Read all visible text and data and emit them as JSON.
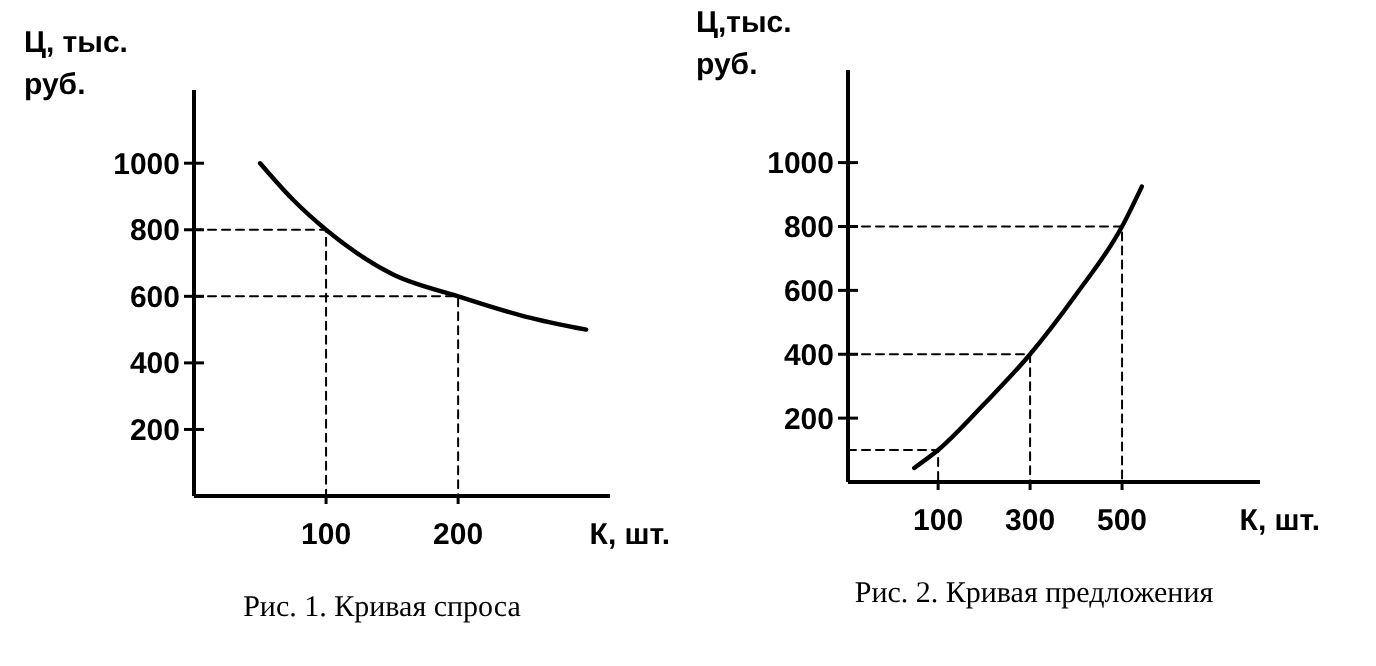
{
  "chart_data": [
    {
      "type": "line",
      "title": "Рис. 1. Кривая спроса",
      "xlabel": "К, шт.",
      "ylabel": "Ц, тыс. руб.",
      "xlim": [
        0,
        315
      ],
      "ylim": [
        0,
        1220
      ],
      "xticks": [
        100,
        200
      ],
      "yticks": [
        200,
        400,
        600,
        800,
        1000
      ],
      "grid": false,
      "marker": "none",
      "series": [
        {
          "color": "#000000",
          "x": [
            50,
            75,
            100,
            150,
            200,
            250,
            297
          ],
          "values": [
            1000,
            890,
            800,
            667,
            600,
            540,
            500
          ]
        },
        {
          "color": "#000000",
          "line_style": "dashed",
          "x": [
            0,
            100,
            100
          ],
          "values": [
            800,
            800,
            0
          ]
        },
        {
          "color": "#000000",
          "line_style": "dashed",
          "x": [
            0,
            200,
            200
          ],
          "values": [
            600,
            600,
            0
          ]
        }
      ]
    },
    {
      "type": "line",
      "title": "Рис. 2. Кривая предложения",
      "xlabel": "К, шт.",
      "ylabel": "Ц,тыс. руб.",
      "xlim": [
        -96,
        800
      ],
      "ylim": [
        0,
        1290
      ],
      "xticks": [
        100,
        300,
        500
      ],
      "yticks": [
        200,
        400,
        600,
        800,
        1000
      ],
      "grid": false,
      "marker": "none",
      "series": [
        {
          "color": "#000000",
          "x": [
            48,
            100,
            200,
            300,
            400,
            500,
            543
          ],
          "values": [
            44,
            100,
            244,
            400,
            587,
            800,
            925
          ]
        },
        {
          "color": "#000000",
          "line_style": "dashed",
          "x": [
            -96,
            100,
            100
          ],
          "values": [
            100,
            100,
            0
          ]
        },
        {
          "color": "#000000",
          "line_style": "dashed",
          "x": [
            -96,
            300,
            300
          ],
          "values": [
            400,
            400,
            0
          ]
        },
        {
          "color": "#000000",
          "line_style": "dashed",
          "x": [
            -96,
            500,
            500
          ],
          "values": [
            800,
            800,
            0
          ]
        }
      ]
    }
  ]
}
